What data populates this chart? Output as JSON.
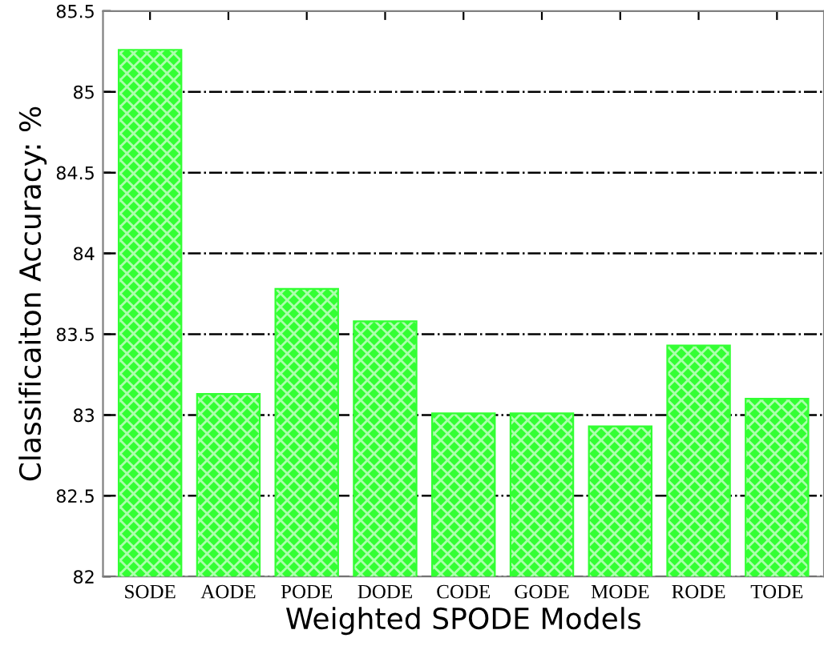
{
  "chart_data": {
    "type": "bar",
    "xlabel": "Weighted SPODE Models",
    "ylabel": "Classificaiton Accuracy: %",
    "categories": [
      "SODE",
      "AODE",
      "PODE",
      "DODE",
      "CODE",
      "GODE",
      "MODE",
      "RODE",
      "TODE"
    ],
    "values": [
      85.26,
      83.13,
      83.78,
      83.58,
      83.01,
      83.01,
      82.93,
      83.43,
      83.1
    ],
    "color": "#33ff33",
    "ylim": [
      82,
      85.5
    ],
    "yticks": [
      82,
      82.5,
      83,
      83.5,
      84,
      84.5,
      85,
      85.5
    ],
    "grid": "y"
  }
}
